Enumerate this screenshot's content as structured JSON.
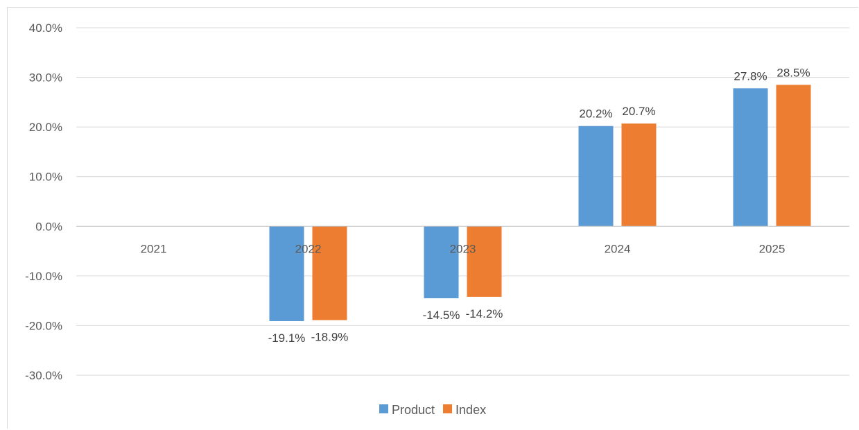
{
  "chart_data": {
    "type": "bar",
    "title": "",
    "xlabel": "",
    "ylabel": "",
    "categories": [
      "2021",
      "2022",
      "2023",
      "2024",
      "2025"
    ],
    "series": [
      {
        "name": "Product",
        "values": [
          null,
          -19.1,
          -14.5,
          20.2,
          27.8
        ],
        "labels": [
          "",
          "-19.1%",
          "-14.5%",
          "20.2%",
          "27.8%"
        ],
        "color": "#5b9bd5"
      },
      {
        "name": "Index",
        "values": [
          null,
          -18.9,
          -14.2,
          20.7,
          28.5
        ],
        "labels": [
          "",
          "-18.9%",
          "-14.2%",
          "20.7%",
          "28.5%"
        ],
        "color": "#ed7d31"
      }
    ],
    "ylim": [
      -30,
      40
    ],
    "yticks": [
      40,
      30,
      20,
      10,
      0,
      -10,
      -20,
      -30
    ],
    "ytick_labels": [
      "40.0%",
      "30.0%",
      "20.0%",
      "10.0%",
      "0.0%",
      "-10.0%",
      "-20.0%",
      "-30.0%"
    ],
    "grid": true,
    "legend": "bottom-center",
    "gridline_color": "#d9d9d9",
    "axis_color": "#bfbfbf"
  }
}
